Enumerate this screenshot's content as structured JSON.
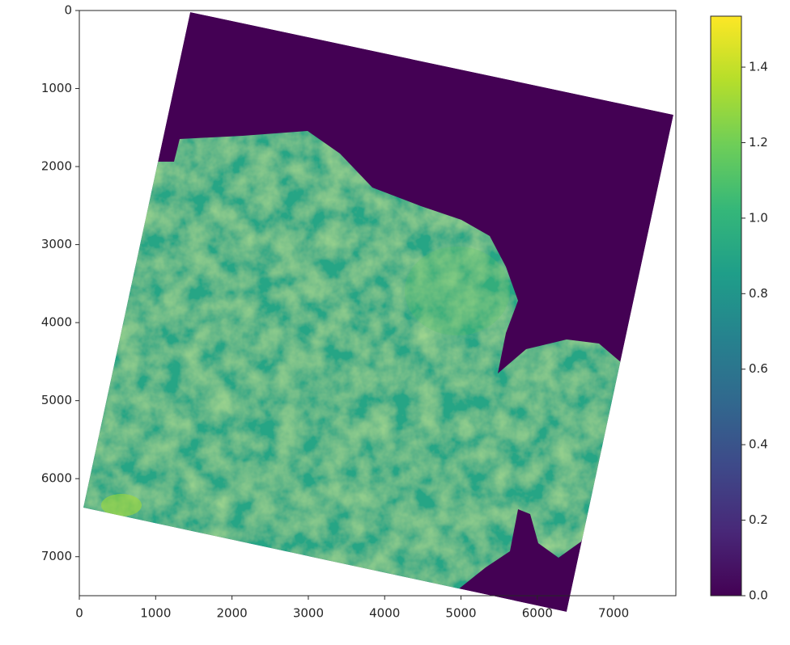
{
  "chart_data": {
    "type": "image",
    "colormap": "viridis",
    "xlim": [
      0,
      7815
    ],
    "xticks": [
      0,
      1000,
      2000,
      3000,
      4000,
      5000,
      6000,
      7000
    ],
    "ylim": [
      7500,
      0
    ],
    "yticks": [
      0,
      1000,
      2000,
      3000,
      4000,
      5000,
      6000,
      7000
    ],
    "clim": [
      0,
      1.535
    ],
    "cticks": [
      {
        "value": 0,
        "label": "0.0"
      },
      {
        "value": 0.2,
        "label": "0.2"
      },
      {
        "value": 0.4,
        "label": "0.4"
      },
      {
        "value": 0.6,
        "label": "0.6"
      },
      {
        "value": 0.8,
        "label": "0.8"
      },
      {
        "value": 1,
        "label": "1.0"
      },
      {
        "value": 1.2,
        "label": "1.2"
      },
      {
        "value": 1.4,
        "label": "1.4"
      }
    ]
  }
}
